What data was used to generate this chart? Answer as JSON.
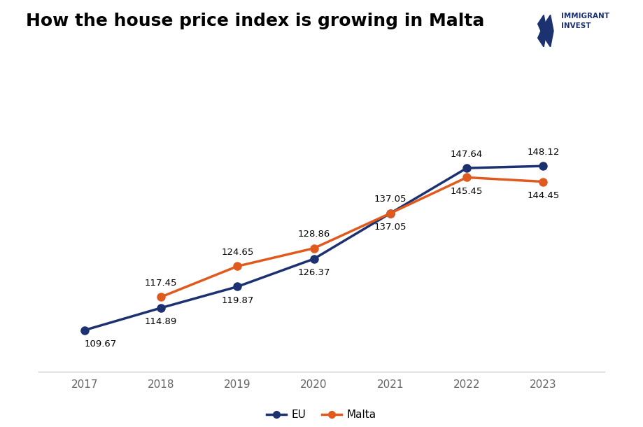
{
  "title": "How the house price index is growing in Malta",
  "years": [
    2017,
    2018,
    2019,
    2020,
    2021,
    2022,
    2023
  ],
  "eu_values": [
    109.67,
    114.89,
    119.87,
    126.37,
    137.05,
    147.64,
    148.12
  ],
  "malta_values": [
    null,
    117.45,
    124.65,
    128.86,
    137.05,
    145.45,
    144.45
  ],
  "eu_color": "#1c3170",
  "malta_color": "#e05a1e",
  "background_color": "#ffffff",
  "eu_label": "EU",
  "malta_label": "Malta",
  "logo_color": "#1c3170",
  "xlim": [
    2016.4,
    2023.8
  ],
  "ylim": [
    100,
    162
  ],
  "linewidth": 2.5,
  "markersize": 8,
  "label_fontsize": 9.5,
  "tick_fontsize": 11,
  "title_fontsize": 18
}
